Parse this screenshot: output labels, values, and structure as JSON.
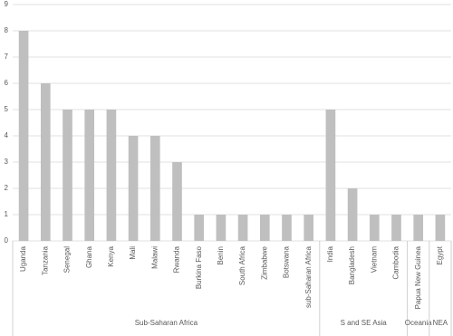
{
  "chart_data": {
    "type": "bar",
    "categories": [
      "Uganda",
      "Tanzania",
      "Senegal",
      "Ghana",
      "Kenya",
      "Mali",
      "Malawi",
      "Rwanda",
      "Burkina Faso",
      "Benin",
      "South Africa",
      "Zimbabwe",
      "Botswana",
      "sub-Saharan Africa",
      "India",
      "Bangladesh",
      "Vietnam",
      "Cambodia",
      "Papua New Guinea",
      "Egypt"
    ],
    "groups": [
      "Sub-Saharan Africa",
      "Sub-Saharan Africa",
      "Sub-Saharan Africa",
      "Sub-Saharan Africa",
      "Sub-Saharan Africa",
      "Sub-Saharan Africa",
      "Sub-Saharan Africa",
      "Sub-Saharan Africa",
      "Sub-Saharan Africa",
      "Sub-Saharan Africa",
      "Sub-Saharan Africa",
      "Sub-Saharan Africa",
      "Sub-Saharan Africa",
      "Sub-Saharan Africa",
      "S and SE Asia",
      "S and SE Asia",
      "S and SE Asia",
      "S and SE Asia",
      "Oceania",
      "NEA"
    ],
    "values": [
      8,
      6,
      5,
      5,
      5,
      4,
      4,
      3,
      1,
      1,
      1,
      1,
      1,
      1,
      5,
      2,
      1,
      1,
      1,
      1
    ],
    "color": "#bfbfbf",
    "ylim": [
      0,
      9
    ],
    "yticks": [
      0,
      1,
      2,
      3,
      4,
      5,
      6,
      7,
      8,
      9
    ],
    "grid": true
  }
}
